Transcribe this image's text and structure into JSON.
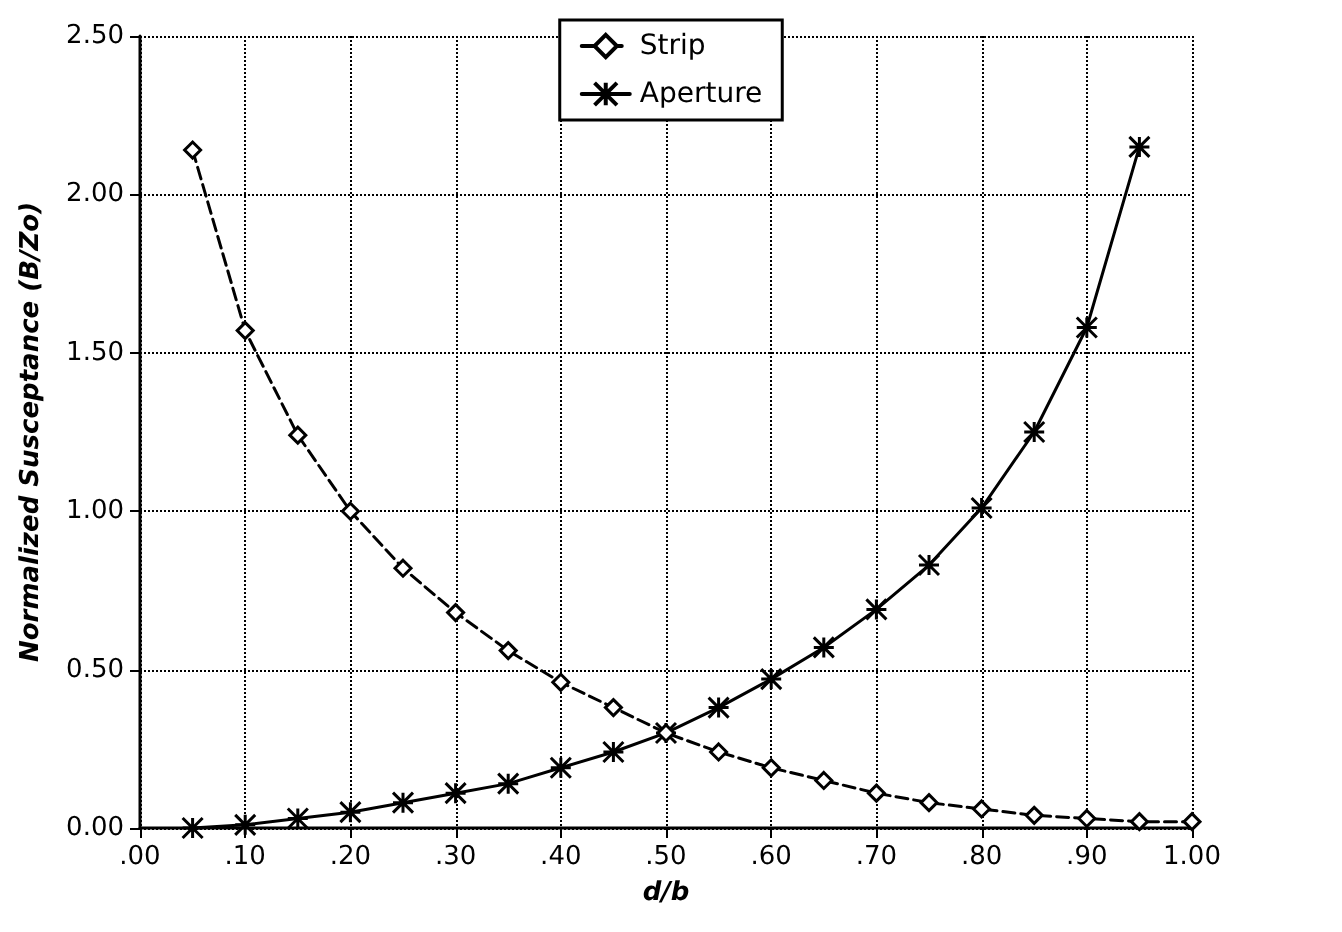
{
  "chart_data": {
    "type": "line",
    "xlabel": "d/b",
    "ylabel": "Normalized Susceptance (B/Zo)",
    "x": [
      0.05,
      0.1,
      0.15,
      0.2,
      0.25,
      0.3,
      0.35,
      0.4,
      0.45,
      0.5,
      0.55,
      0.6,
      0.65,
      0.7,
      0.75,
      0.8,
      0.85,
      0.9,
      0.95,
      1.0
    ],
    "series": [
      {
        "name": "Strip",
        "color": "#000000",
        "marker": "diamond",
        "line_style": "dashed",
        "values": [
          2.14,
          1.57,
          1.24,
          1.0,
          0.82,
          0.68,
          0.56,
          0.46,
          0.38,
          0.3,
          0.24,
          0.19,
          0.15,
          0.11,
          0.08,
          0.06,
          0.04,
          0.03,
          0.02,
          0.02
        ]
      },
      {
        "name": "Aperture",
        "color": "#000000",
        "marker": "cross",
        "line_style": "solid",
        "x": [
          0.05,
          0.1,
          0.15,
          0.2,
          0.25,
          0.3,
          0.35,
          0.4,
          0.45,
          0.5,
          0.55,
          0.6,
          0.65,
          0.7,
          0.75,
          0.8,
          0.85,
          0.9,
          0.95
        ],
        "values": [
          0.0,
          0.01,
          0.03,
          0.05,
          0.08,
          0.11,
          0.14,
          0.19,
          0.24,
          0.3,
          0.38,
          0.47,
          0.57,
          0.69,
          0.83,
          1.01,
          1.25,
          1.58,
          2.15
        ]
      }
    ],
    "xlim": [
      0,
      1
    ],
    "xticks": [
      {
        "value": 0,
        "label": ".00"
      },
      {
        "value": 0.1,
        "label": ".10"
      },
      {
        "value": 0.2,
        "label": ".20"
      },
      {
        "value": 0.3,
        "label": ".30"
      },
      {
        "value": 0.4,
        "label": ".40"
      },
      {
        "value": 0.5,
        "label": ".50"
      },
      {
        "value": 0.6,
        "label": ".60"
      },
      {
        "value": 0.7,
        "label": ".70"
      },
      {
        "value": 0.8,
        "label": ".80"
      },
      {
        "value": 0.9,
        "label": ".90"
      },
      {
        "value": 1,
        "label": "1.00"
      }
    ],
    "ylim": [
      0,
      2.5
    ],
    "yticks": [
      {
        "value": 0,
        "label": "0.00"
      },
      {
        "value": 0.5,
        "label": "0.50"
      },
      {
        "value": 1,
        "label": "1.00"
      },
      {
        "value": 1.5,
        "label": "1.50"
      },
      {
        "value": 2,
        "label": "2.00"
      },
      {
        "value": 2.5,
        "label": "2.50"
      }
    ],
    "grid": true,
    "legend": "top"
  }
}
